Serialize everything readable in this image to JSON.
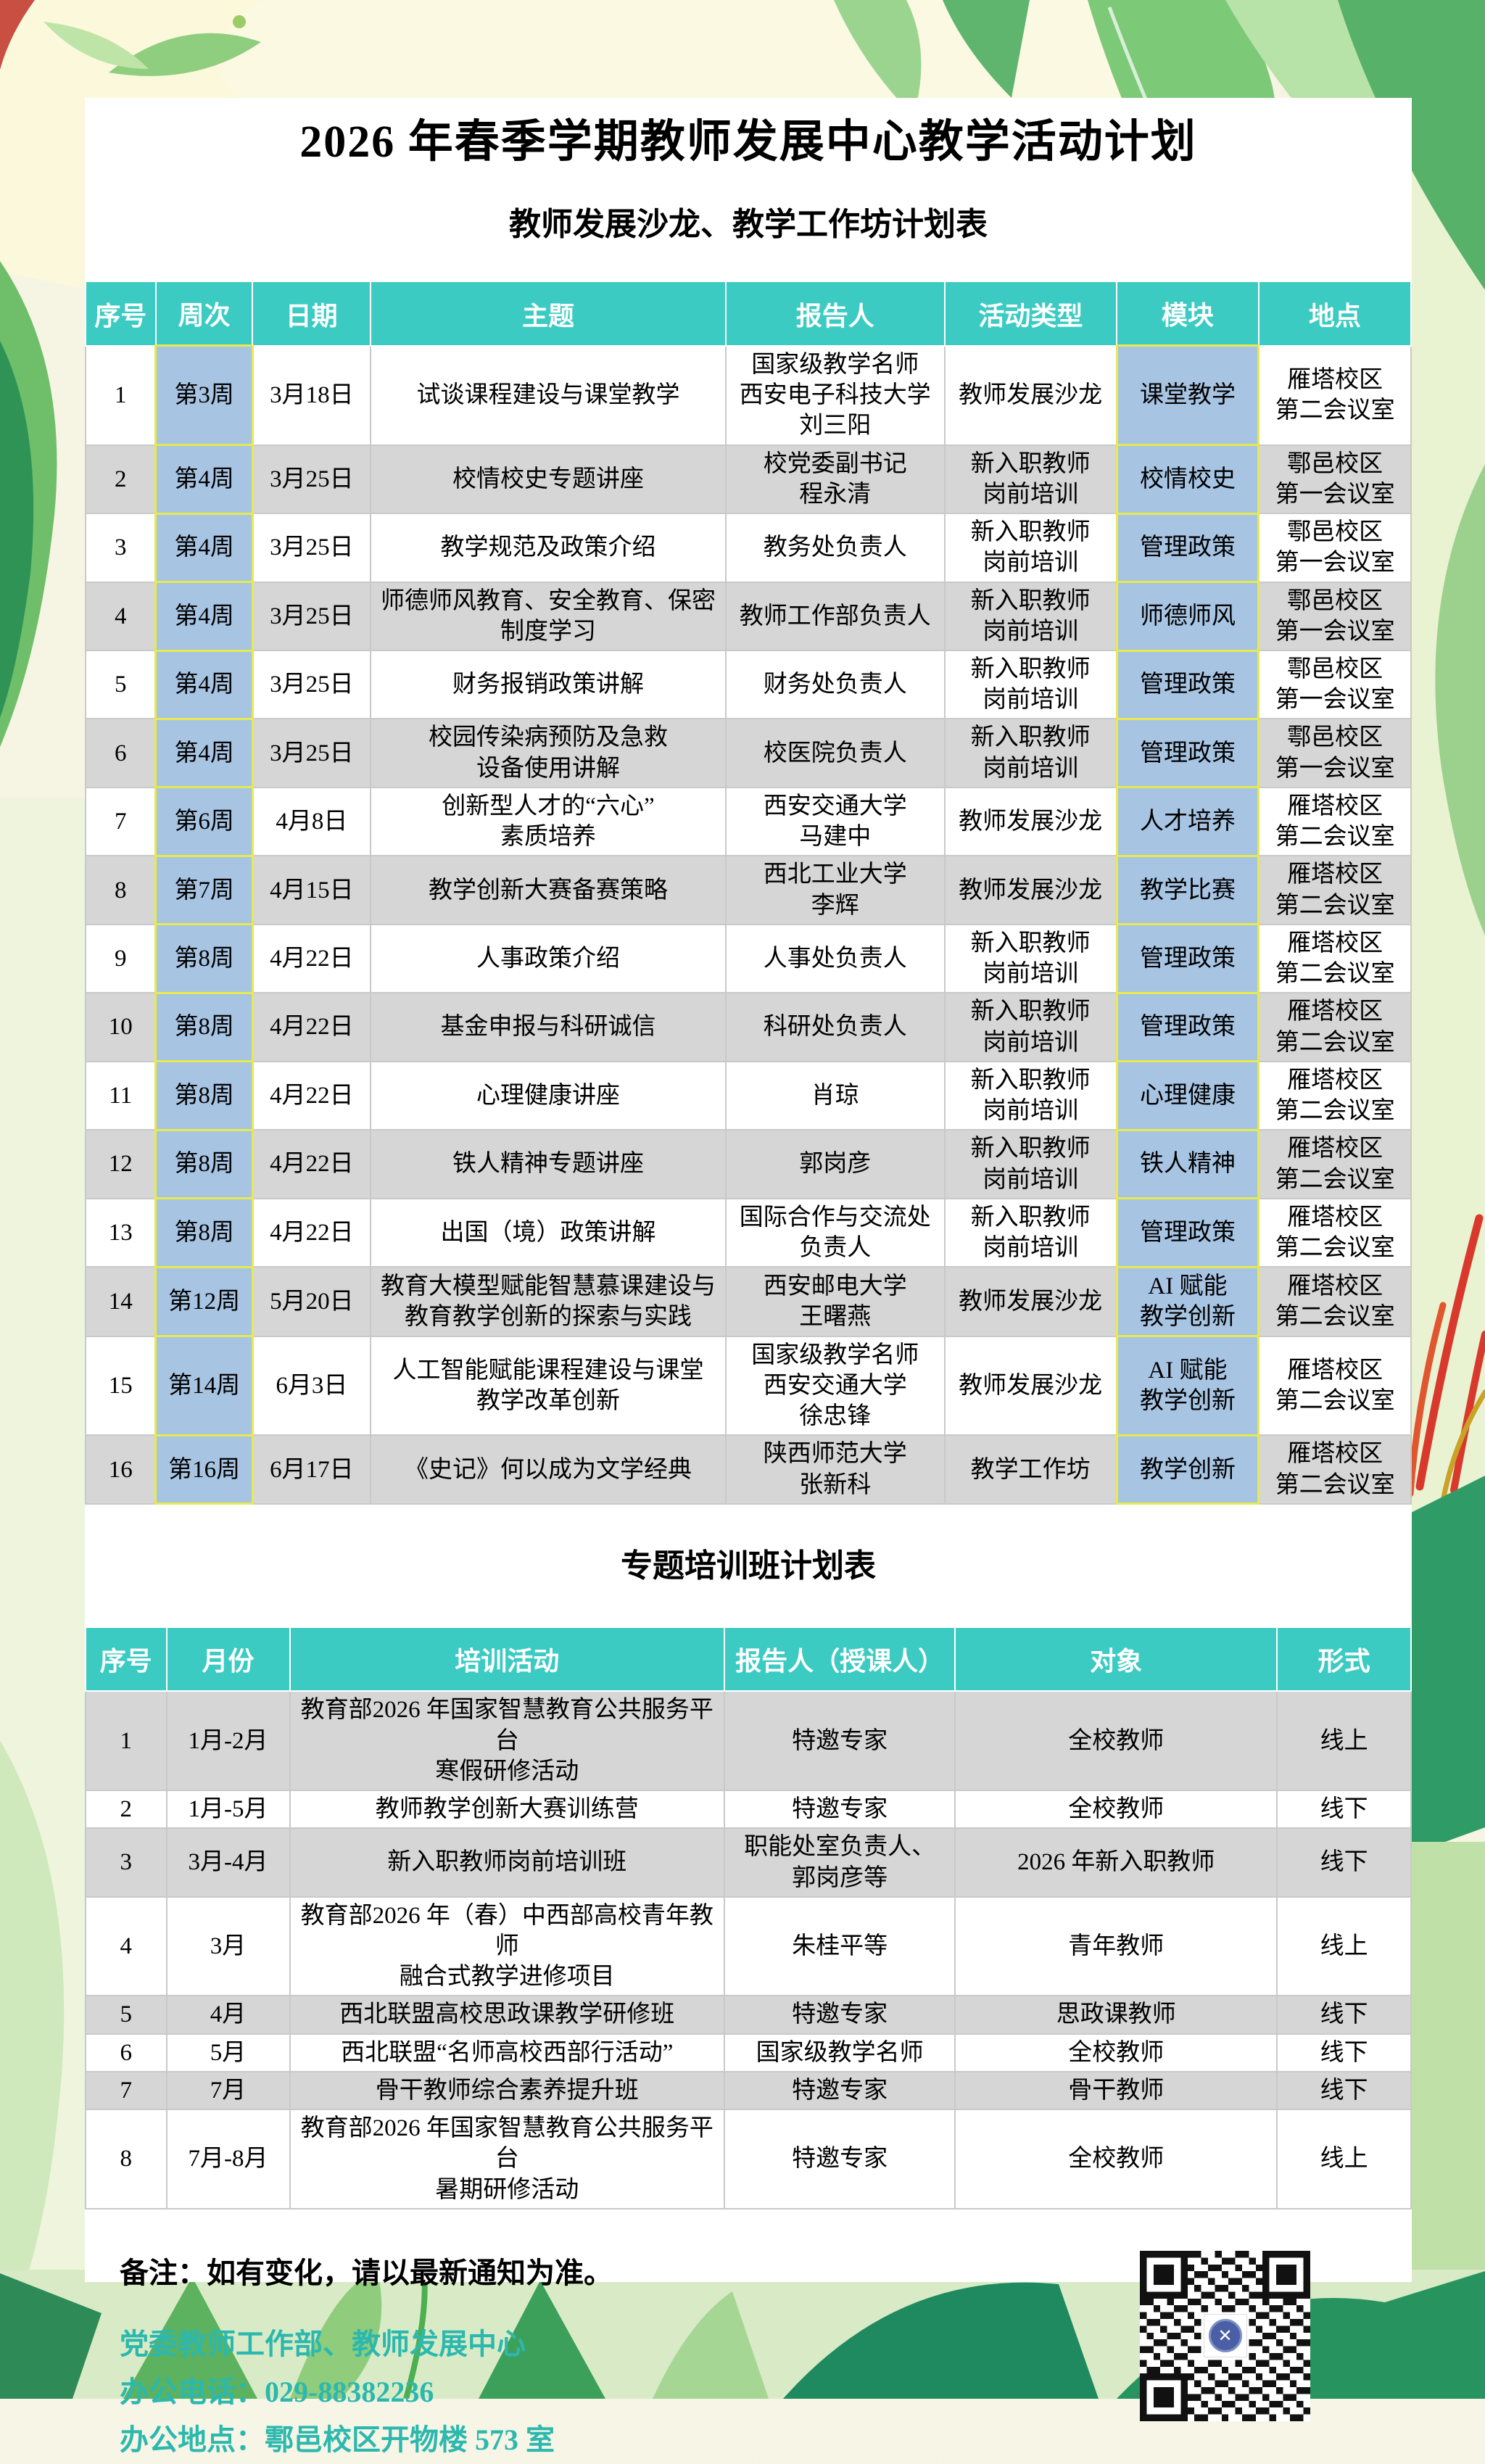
{
  "header": {
    "title": "2026 年春季学期教师发展中心教学活动计划",
    "subtitle": "教师发展沙龙、教学工作坊计划表"
  },
  "section2": {
    "title": "专题培训班计划表"
  },
  "colors": {
    "teal": "#3bcbc2",
    "blue": "#a7c4e3",
    "yellow_border": "#e7ea4f",
    "gray_row": "#d6d6d6",
    "footer_text": "#2cb8ae"
  },
  "table1": {
    "columns": [
      {
        "key": "no",
        "label": "序号"
      },
      {
        "key": "week",
        "label": "周次",
        "highlight": true
      },
      {
        "key": "date",
        "label": "日期"
      },
      {
        "key": "topic",
        "label": "主题"
      },
      {
        "key": "speaker",
        "label": "报告人"
      },
      {
        "key": "type",
        "label": "活动类型"
      },
      {
        "key": "module",
        "label": "模块",
        "highlight": true
      },
      {
        "key": "location",
        "label": "地点"
      }
    ],
    "rows": [
      {
        "no": "1",
        "week": "第3周",
        "date": "3月18日",
        "topic": "试谈课程建设与课堂教学",
        "speaker": "国家级教学名师\n西安电子科技大学\n刘三阳",
        "type": "教师发展沙龙",
        "module": "课堂教学",
        "location": "雁塔校区\n第二会议室"
      },
      {
        "no": "2",
        "week": "第4周",
        "date": "3月25日",
        "topic": "校情校史专题讲座",
        "speaker": "校党委副书记\n程永清",
        "type": "新入职教师\n岗前培训",
        "module": "校情校史",
        "location": "鄠邑校区\n第一会议室"
      },
      {
        "no": "3",
        "week": "第4周",
        "date": "3月25日",
        "topic": "教学规范及政策介绍",
        "speaker": "教务处负责人",
        "type": "新入职教师\n岗前培训",
        "module": "管理政策",
        "location": "鄠邑校区\n第一会议室"
      },
      {
        "no": "4",
        "week": "第4周",
        "date": "3月25日",
        "topic": "师德师风教育、安全教育、保密\n制度学习",
        "speaker": "教师工作部负责人",
        "type": "新入职教师\n岗前培训",
        "module": "师德师风",
        "location": "鄠邑校区\n第一会议室"
      },
      {
        "no": "5",
        "week": "第4周",
        "date": "3月25日",
        "topic": "财务报销政策讲解",
        "speaker": "财务处负责人",
        "type": "新入职教师\n岗前培训",
        "module": "管理政策",
        "location": "鄠邑校区\n第一会议室"
      },
      {
        "no": "6",
        "week": "第4周",
        "date": "3月25日",
        "topic": "校园传染病预防及急救\n设备使用讲解",
        "speaker": "校医院负责人",
        "type": "新入职教师\n岗前培训",
        "module": "管理政策",
        "location": "鄠邑校区\n第一会议室"
      },
      {
        "no": "7",
        "week": "第6周",
        "date": "4月8日",
        "topic": "创新型人才的“六心”\n素质培养",
        "speaker": "西安交通大学\n马建中",
        "type": "教师发展沙龙",
        "module": "人才培养",
        "location": "雁塔校区\n第二会议室"
      },
      {
        "no": "8",
        "week": "第7周",
        "date": "4月15日",
        "topic": "教学创新大赛备赛策略",
        "speaker": "西北工业大学\n李辉",
        "type": "教师发展沙龙",
        "module": "教学比赛",
        "location": "雁塔校区\n第二会议室"
      },
      {
        "no": "9",
        "week": "第8周",
        "date": "4月22日",
        "topic": "人事政策介绍",
        "speaker": "人事处负责人",
        "type": "新入职教师\n岗前培训",
        "module": "管理政策",
        "location": "雁塔校区\n第二会议室"
      },
      {
        "no": "10",
        "week": "第8周",
        "date": "4月22日",
        "topic": "基金申报与科研诚信",
        "speaker": "科研处负责人",
        "type": "新入职教师\n岗前培训",
        "module": "管理政策",
        "location": "雁塔校区\n第二会议室"
      },
      {
        "no": "11",
        "week": "第8周",
        "date": "4月22日",
        "topic": "心理健康讲座",
        "speaker": "肖琼",
        "type": "新入职教师\n岗前培训",
        "module": "心理健康",
        "location": "雁塔校区\n第二会议室"
      },
      {
        "no": "12",
        "week": "第8周",
        "date": "4月22日",
        "topic": "铁人精神专题讲座",
        "speaker": "郭岗彦",
        "type": "新入职教师\n岗前培训",
        "module": "铁人精神",
        "location": "雁塔校区\n第二会议室"
      },
      {
        "no": "13",
        "week": "第8周",
        "date": "4月22日",
        "topic": "出国（境）政策讲解",
        "speaker": "国际合作与交流处\n负责人",
        "type": "新入职教师\n岗前培训",
        "module": "管理政策",
        "location": "雁塔校区\n第二会议室"
      },
      {
        "no": "14",
        "week": "第12周",
        "date": "5月20日",
        "topic": "教育大模型赋能智慧慕课建设与\n教育教学创新的探索与实践",
        "speaker": "西安邮电大学\n王曙燕",
        "type": "教师发展沙龙",
        "module": "AI 赋能\n教学创新",
        "location": "雁塔校区\n第二会议室"
      },
      {
        "no": "15",
        "week": "第14周",
        "date": "6月3日",
        "topic": "人工智能赋能课程建设与课堂\n教学改革创新",
        "speaker": "国家级教学名师\n西安交通大学\n徐忠锋",
        "type": "教师发展沙龙",
        "module": "AI 赋能\n教学创新",
        "location": "雁塔校区\n第二会议室"
      },
      {
        "no": "16",
        "week": "第16周",
        "date": "6月17日",
        "topic": "《史记》何以成为文学经典",
        "speaker": "陕西师范大学\n张新科",
        "type": "教学工作坊",
        "module": "教学创新",
        "location": "雁塔校区\n第二会议室"
      }
    ]
  },
  "table2": {
    "columns": [
      {
        "key": "no",
        "label": "序号"
      },
      {
        "key": "month",
        "label": "月份"
      },
      {
        "key": "activity",
        "label": "培训活动"
      },
      {
        "key": "speaker",
        "label": "报告人（授课人）"
      },
      {
        "key": "audience",
        "label": "对象"
      },
      {
        "key": "mode",
        "label": "形式"
      }
    ],
    "rows": [
      {
        "no": "1",
        "month": "1月-2月",
        "activity": "教育部2026 年国家智慧教育公共服务平台\n寒假研修活动",
        "speaker": "特邀专家",
        "audience": "全校教师",
        "mode": "线上"
      },
      {
        "no": "2",
        "month": "1月-5月",
        "activity": "教师教学创新大赛训练营",
        "speaker": "特邀专家",
        "audience": "全校教师",
        "mode": "线下"
      },
      {
        "no": "3",
        "month": "3月-4月",
        "activity": "新入职教师岗前培训班",
        "speaker": "职能处室负责人、\n郭岗彦等",
        "audience": "2026 年新入职教师",
        "mode": "线下"
      },
      {
        "no": "4",
        "month": "3月",
        "activity": "教育部2026 年（春）中西部高校青年教师\n融合式教学进修项目",
        "speaker": "朱桂平等",
        "audience": "青年教师",
        "mode": "线上"
      },
      {
        "no": "5",
        "month": "4月",
        "activity": "西北联盟高校思政课教学研修班",
        "speaker": "特邀专家",
        "audience": "思政课教师",
        "mode": "线下"
      },
      {
        "no": "6",
        "month": "5月",
        "activity": "西北联盟“名师高校西部行活动”",
        "speaker": "国家级教学名师",
        "audience": "全校教师",
        "mode": "线下"
      },
      {
        "no": "7",
        "month": "7月",
        "activity": "骨干教师综合素养提升班",
        "speaker": "特邀专家",
        "audience": "骨干教师",
        "mode": "线下"
      },
      {
        "no": "8",
        "month": "7月-8月",
        "activity": "教育部2026 年国家智慧教育公共服务平台\n暑期研修活动",
        "speaker": "特邀专家",
        "audience": "全校教师",
        "mode": "线上"
      }
    ]
  },
  "footer": {
    "note": "备注：如有变化，请以最新通知为准。",
    "department": "党委教师工作部、教师发展中心",
    "phone": "办公电话：029-88382236",
    "address": "办公地点：鄠邑校区开物楼 573 室"
  }
}
